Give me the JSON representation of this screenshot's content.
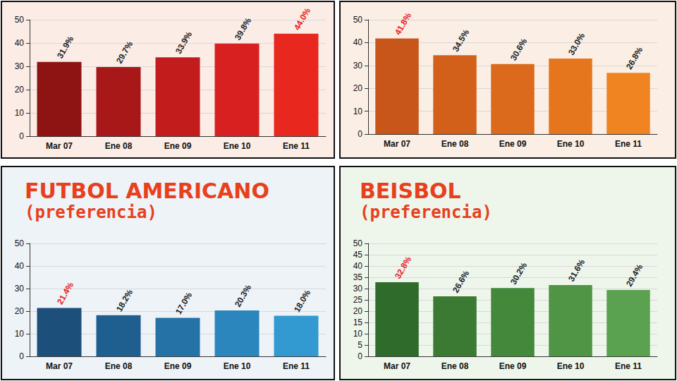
{
  "chart_data": [
    {
      "type": "bar",
      "categories": [
        "Mar 07",
        "Ene 08",
        "Ene 09",
        "Ene 10",
        "Ene 11"
      ],
      "values": [
        31.9,
        29.7,
        33.9,
        39.8,
        44.0
      ],
      "value_labels": [
        "31.9%",
        "29.7%",
        "33.9%",
        "39.8%",
        "44.0%"
      ],
      "colors": [
        "#8e1414",
        "#a81818",
        "#c21c1c",
        "#d82020",
        "#e8281e"
      ],
      "ylim": [
        0,
        50
      ],
      "yticks": [
        0,
        10,
        20,
        30,
        40,
        50
      ],
      "grid": true,
      "data_labels": true
    },
    {
      "type": "bar",
      "categories": [
        "Mar 07",
        "Ene 08",
        "Ene 09",
        "Ene 10",
        "Ene 11"
      ],
      "values": [
        41.8,
        34.5,
        30.6,
        33.0,
        26.8
      ],
      "value_labels": [
        "41.8%",
        "34.5%",
        "30.6%",
        "33.0%",
        "26.8%"
      ],
      "colors": [
        "#c8561a",
        "#d2601a",
        "#dc6a1c",
        "#e6761e",
        "#f08420"
      ],
      "ylim": [
        0,
        50
      ],
      "yticks": [
        0,
        10,
        20,
        30,
        40,
        50
      ],
      "grid": true,
      "data_labels": true
    },
    {
      "type": "bar",
      "title": "FUTBOL AMERICANO",
      "subtitle": "(preferencia)",
      "categories": [
        "Mar 07",
        "Ene 08",
        "Ene 09",
        "Ene 10",
        "Ene 11"
      ],
      "values": [
        21.4,
        18.2,
        17.0,
        20.3,
        18.0
      ],
      "value_labels": [
        "21.4%",
        "18.2%",
        "17.0%",
        "20.3%",
        "18.0%"
      ],
      "colors": [
        "#1c4f7a",
        "#1f5f8f",
        "#2472a6",
        "#2a86bd",
        "#3399d1"
      ],
      "ylim": [
        0,
        50
      ],
      "yticks": [
        0,
        10,
        20,
        30,
        40,
        50
      ],
      "grid": true,
      "data_labels": true
    },
    {
      "type": "bar",
      "title": "BEISBOL",
      "subtitle": "(preferencia)",
      "categories": [
        "Mar 07",
        "Ene 08",
        "Ene 09",
        "Ene 10",
        "Ene 11"
      ],
      "values": [
        32.8,
        26.6,
        30.2,
        31.6,
        29.4
      ],
      "value_labels": [
        "32.8%",
        "26.6%",
        "30.2%",
        "31.6%",
        "29.4%"
      ],
      "colors": [
        "#2f6b2a",
        "#3a7a33",
        "#44883c",
        "#4f9545",
        "#5aa24f"
      ],
      "ylim": [
        0,
        50
      ],
      "yticks": [
        0,
        5,
        10,
        15,
        20,
        25,
        30,
        35,
        40,
        45,
        50
      ],
      "grid": true,
      "data_labels": true
    }
  ]
}
